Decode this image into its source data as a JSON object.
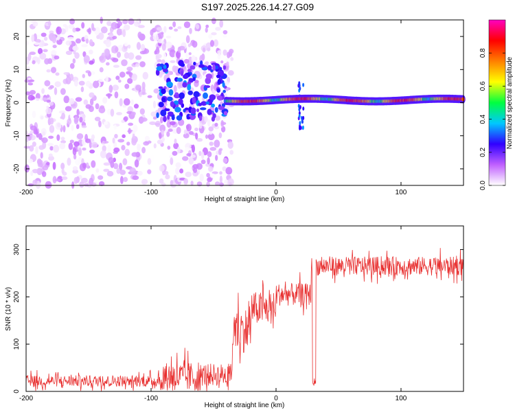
{
  "title": "S197.2025.226.14.27.G09",
  "chart_data": [
    {
      "type": "heatmap",
      "name": "spectrogram",
      "xlabel": "Height of straight line (km)",
      "ylabel": "Frequency (Hz)",
      "xlim": [
        -200,
        150
      ],
      "ylim": [
        -25,
        25
      ],
      "xticks": [
        -200,
        -100,
        0,
        100
      ],
      "xtick_labels": [
        "-200",
        "-100",
        "0",
        "100"
      ],
      "yticks": [
        -20,
        -10,
        0,
        10,
        20
      ],
      "ytick_labels": [
        "-20",
        "-10",
        "0",
        "10",
        "20"
      ],
      "colorbar": {
        "label": "Normalized spectral amplitude",
        "range": [
          0,
          1
        ],
        "ticks": [
          0.0,
          0.2,
          0.4,
          0.6,
          0.8
        ],
        "tick_labels": [
          "0.0",
          "0.2",
          "0.4",
          "0.6",
          "0.8"
        ],
        "colors": [
          "#ffffff",
          "#c060ff",
          "#3000ff",
          "#00c8ff",
          "#00ff40",
          "#ffff00",
          "#ff8000",
          "#ff0000",
          "#ff00c0"
        ]
      },
      "regions": [
        {
          "name": "noise",
          "x": [
            -200,
            -35
          ],
          "freq": [
            -25,
            25
          ],
          "level": 0.1
        },
        {
          "name": "transition",
          "x": [
            -95,
            -40
          ],
          "freq": [
            -5,
            12
          ],
          "level": 0.25
        },
        {
          "name": "carrier",
          "x": [
            -40,
            150
          ],
          "freq": [
            0,
            2
          ],
          "level": 0.7
        },
        {
          "name": "spike",
          "x": [
            18,
            22
          ],
          "freq": [
            -8,
            6
          ],
          "level": 0.3
        }
      ]
    },
    {
      "type": "line",
      "name": "snr",
      "xlabel": "Height of straight line (km)",
      "ylabel": "SNR (10 * v/v)",
      "xlim": [
        -200,
        150
      ],
      "ylim": [
        0,
        350
      ],
      "xticks": [
        -200,
        -100,
        0,
        100
      ],
      "xtick_labels": [
        "-200",
        "-100",
        "0",
        "100"
      ],
      "yticks": [
        0,
        100,
        200,
        300
      ],
      "ytick_labels": [
        "0",
        "100",
        "200",
        "300"
      ],
      "color": "#e83030",
      "segments": [
        {
          "x": [
            -200,
            -95
          ],
          "mean": 22,
          "noise": 15
        },
        {
          "x": [
            -95,
            -60
          ],
          "mean": 30,
          "noise": 40
        },
        {
          "x": [
            -60,
            -35
          ],
          "mean": 35,
          "noise": 30
        },
        {
          "x": [
            -35,
            -20
          ],
          "mean": 130,
          "noise": 60
        },
        {
          "x": [
            -20,
            0
          ],
          "mean": 175,
          "noise": 45
        },
        {
          "x": [
            0,
            28
          ],
          "mean": 205,
          "noise": 30
        },
        {
          "x": [
            29,
            32
          ],
          "mean": 20,
          "noise": 10
        },
        {
          "x": [
            32,
            150
          ],
          "mean": 265,
          "noise": 25
        }
      ]
    }
  ]
}
